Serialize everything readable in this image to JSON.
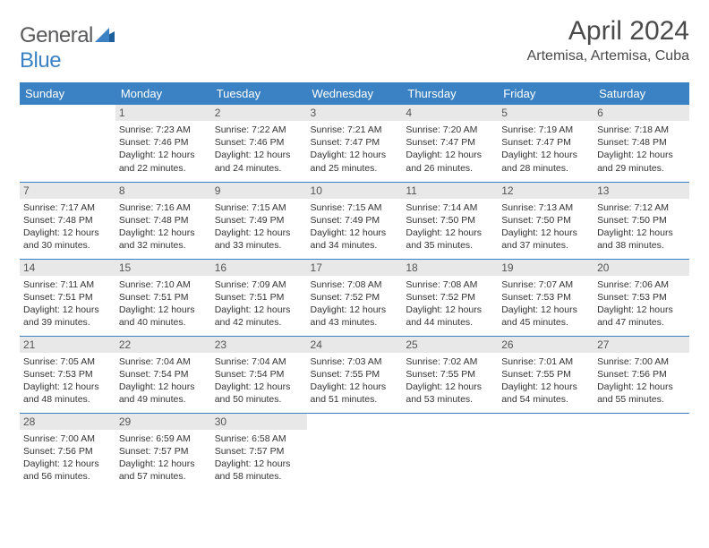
{
  "brand": {
    "name_part1": "General",
    "name_part2": "Blue"
  },
  "title": "April 2024",
  "location": "Artemisa, Artemisa, Cuba",
  "day_headers": [
    "Sunday",
    "Monday",
    "Tuesday",
    "Wednesday",
    "Thursday",
    "Friday",
    "Saturday"
  ],
  "colors": {
    "header_bg": "#3b82c4",
    "header_text": "#ffffff",
    "daynum_bg": "#e8e8e8",
    "border": "#3b82c4",
    "text": "#333333",
    "logo_gray": "#58595b",
    "logo_blue": "#3b82c4"
  },
  "weeks": [
    [
      null,
      {
        "n": "1",
        "sr": "Sunrise: 7:23 AM",
        "ss": "Sunset: 7:46 PM",
        "d1": "Daylight: 12 hours",
        "d2": "and 22 minutes."
      },
      {
        "n": "2",
        "sr": "Sunrise: 7:22 AM",
        "ss": "Sunset: 7:46 PM",
        "d1": "Daylight: 12 hours",
        "d2": "and 24 minutes."
      },
      {
        "n": "3",
        "sr": "Sunrise: 7:21 AM",
        "ss": "Sunset: 7:47 PM",
        "d1": "Daylight: 12 hours",
        "d2": "and 25 minutes."
      },
      {
        "n": "4",
        "sr": "Sunrise: 7:20 AM",
        "ss": "Sunset: 7:47 PM",
        "d1": "Daylight: 12 hours",
        "d2": "and 26 minutes."
      },
      {
        "n": "5",
        "sr": "Sunrise: 7:19 AM",
        "ss": "Sunset: 7:47 PM",
        "d1": "Daylight: 12 hours",
        "d2": "and 28 minutes."
      },
      {
        "n": "6",
        "sr": "Sunrise: 7:18 AM",
        "ss": "Sunset: 7:48 PM",
        "d1": "Daylight: 12 hours",
        "d2": "and 29 minutes."
      }
    ],
    [
      {
        "n": "7",
        "sr": "Sunrise: 7:17 AM",
        "ss": "Sunset: 7:48 PM",
        "d1": "Daylight: 12 hours",
        "d2": "and 30 minutes."
      },
      {
        "n": "8",
        "sr": "Sunrise: 7:16 AM",
        "ss": "Sunset: 7:48 PM",
        "d1": "Daylight: 12 hours",
        "d2": "and 32 minutes."
      },
      {
        "n": "9",
        "sr": "Sunrise: 7:15 AM",
        "ss": "Sunset: 7:49 PM",
        "d1": "Daylight: 12 hours",
        "d2": "and 33 minutes."
      },
      {
        "n": "10",
        "sr": "Sunrise: 7:15 AM",
        "ss": "Sunset: 7:49 PM",
        "d1": "Daylight: 12 hours",
        "d2": "and 34 minutes."
      },
      {
        "n": "11",
        "sr": "Sunrise: 7:14 AM",
        "ss": "Sunset: 7:50 PM",
        "d1": "Daylight: 12 hours",
        "d2": "and 35 minutes."
      },
      {
        "n": "12",
        "sr": "Sunrise: 7:13 AM",
        "ss": "Sunset: 7:50 PM",
        "d1": "Daylight: 12 hours",
        "d2": "and 37 minutes."
      },
      {
        "n": "13",
        "sr": "Sunrise: 7:12 AM",
        "ss": "Sunset: 7:50 PM",
        "d1": "Daylight: 12 hours",
        "d2": "and 38 minutes."
      }
    ],
    [
      {
        "n": "14",
        "sr": "Sunrise: 7:11 AM",
        "ss": "Sunset: 7:51 PM",
        "d1": "Daylight: 12 hours",
        "d2": "and 39 minutes."
      },
      {
        "n": "15",
        "sr": "Sunrise: 7:10 AM",
        "ss": "Sunset: 7:51 PM",
        "d1": "Daylight: 12 hours",
        "d2": "and 40 minutes."
      },
      {
        "n": "16",
        "sr": "Sunrise: 7:09 AM",
        "ss": "Sunset: 7:51 PM",
        "d1": "Daylight: 12 hours",
        "d2": "and 42 minutes."
      },
      {
        "n": "17",
        "sr": "Sunrise: 7:08 AM",
        "ss": "Sunset: 7:52 PM",
        "d1": "Daylight: 12 hours",
        "d2": "and 43 minutes."
      },
      {
        "n": "18",
        "sr": "Sunrise: 7:08 AM",
        "ss": "Sunset: 7:52 PM",
        "d1": "Daylight: 12 hours",
        "d2": "and 44 minutes."
      },
      {
        "n": "19",
        "sr": "Sunrise: 7:07 AM",
        "ss": "Sunset: 7:53 PM",
        "d1": "Daylight: 12 hours",
        "d2": "and 45 minutes."
      },
      {
        "n": "20",
        "sr": "Sunrise: 7:06 AM",
        "ss": "Sunset: 7:53 PM",
        "d1": "Daylight: 12 hours",
        "d2": "and 47 minutes."
      }
    ],
    [
      {
        "n": "21",
        "sr": "Sunrise: 7:05 AM",
        "ss": "Sunset: 7:53 PM",
        "d1": "Daylight: 12 hours",
        "d2": "and 48 minutes."
      },
      {
        "n": "22",
        "sr": "Sunrise: 7:04 AM",
        "ss": "Sunset: 7:54 PM",
        "d1": "Daylight: 12 hours",
        "d2": "and 49 minutes."
      },
      {
        "n": "23",
        "sr": "Sunrise: 7:04 AM",
        "ss": "Sunset: 7:54 PM",
        "d1": "Daylight: 12 hours",
        "d2": "and 50 minutes."
      },
      {
        "n": "24",
        "sr": "Sunrise: 7:03 AM",
        "ss": "Sunset: 7:55 PM",
        "d1": "Daylight: 12 hours",
        "d2": "and 51 minutes."
      },
      {
        "n": "25",
        "sr": "Sunrise: 7:02 AM",
        "ss": "Sunset: 7:55 PM",
        "d1": "Daylight: 12 hours",
        "d2": "and 53 minutes."
      },
      {
        "n": "26",
        "sr": "Sunrise: 7:01 AM",
        "ss": "Sunset: 7:55 PM",
        "d1": "Daylight: 12 hours",
        "d2": "and 54 minutes."
      },
      {
        "n": "27",
        "sr": "Sunrise: 7:00 AM",
        "ss": "Sunset: 7:56 PM",
        "d1": "Daylight: 12 hours",
        "d2": "and 55 minutes."
      }
    ],
    [
      {
        "n": "28",
        "sr": "Sunrise: 7:00 AM",
        "ss": "Sunset: 7:56 PM",
        "d1": "Daylight: 12 hours",
        "d2": "and 56 minutes."
      },
      {
        "n": "29",
        "sr": "Sunrise: 6:59 AM",
        "ss": "Sunset: 7:57 PM",
        "d1": "Daylight: 12 hours",
        "d2": "and 57 minutes."
      },
      {
        "n": "30",
        "sr": "Sunrise: 6:58 AM",
        "ss": "Sunset: 7:57 PM",
        "d1": "Daylight: 12 hours",
        "d2": "and 58 minutes."
      },
      null,
      null,
      null,
      null
    ]
  ]
}
